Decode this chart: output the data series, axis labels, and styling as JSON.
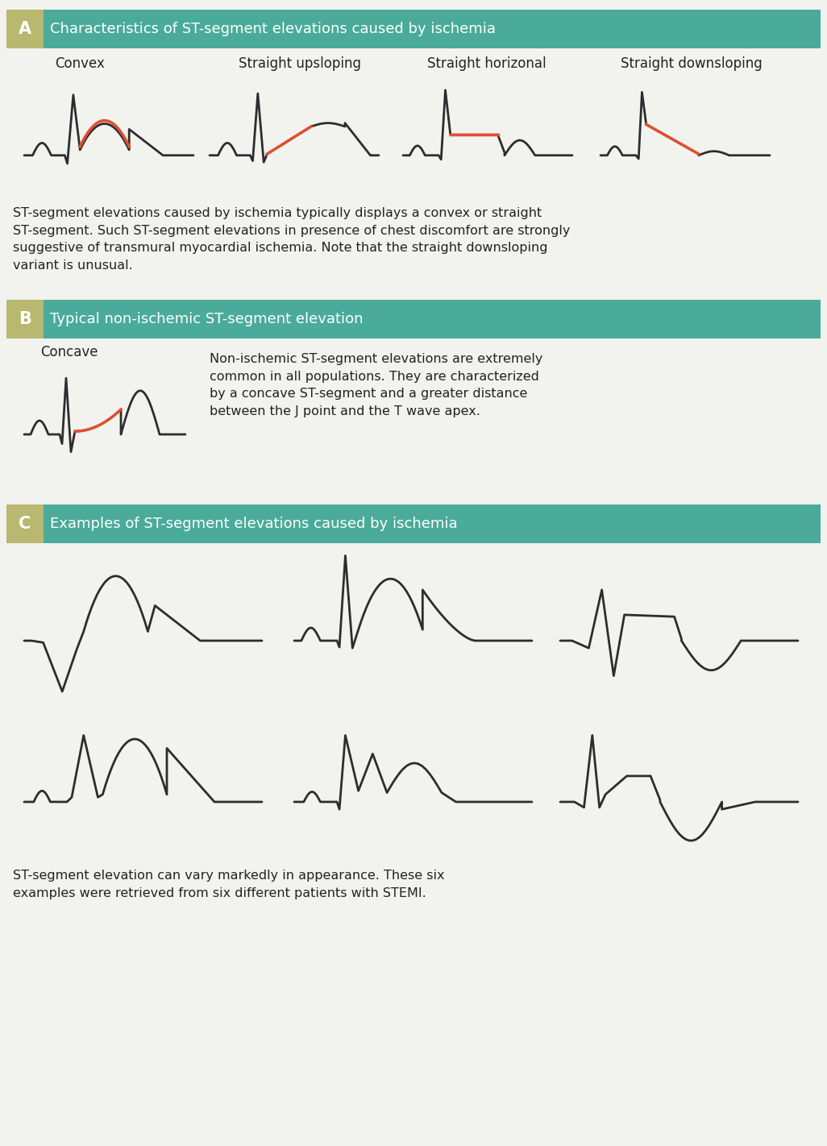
{
  "bg_color": "#f2f2ee",
  "header_color": "#4aab9a",
  "letter_box_color": "#b8b870",
  "header_text_color": "#ffffff",
  "ecg_color": "#2d2d2d",
  "red_line_color": "#e05030",
  "title_A": "Characteristics of ST-segment elevations caused by ischemia",
  "title_B": "Typical non-ischemic ST-segment elevation",
  "title_C": "Examples of ST-segment elevations caused by ischemia",
  "label_A": "A",
  "label_B": "B",
  "label_C": "C",
  "subtitles_A": [
    "Convex",
    "Straight upsloping",
    "Straight horizonal",
    "Straight downsloping"
  ],
  "subtitle_B": "Concave",
  "text_A": "ST-segment elevations caused by ischemia typically displays a convex or straight\nST-segment. Such ST-segment elevations in presence of chest discomfort are strongly\nsuggestive of transmural myocardial ischemia. Note that the straight downsloping\nvariant is unusual.",
  "text_B": "Non-ischemic ST-segment elevations are extremely\ncommon in all populations. They are characterized\nby a concave ST-segment and a greater distance\nbetween the J point and the T wave apex.",
  "text_C": "ST-segment elevation can vary markedly in appearance. These six\nexamples were retrieved from six different patients with STEMI."
}
